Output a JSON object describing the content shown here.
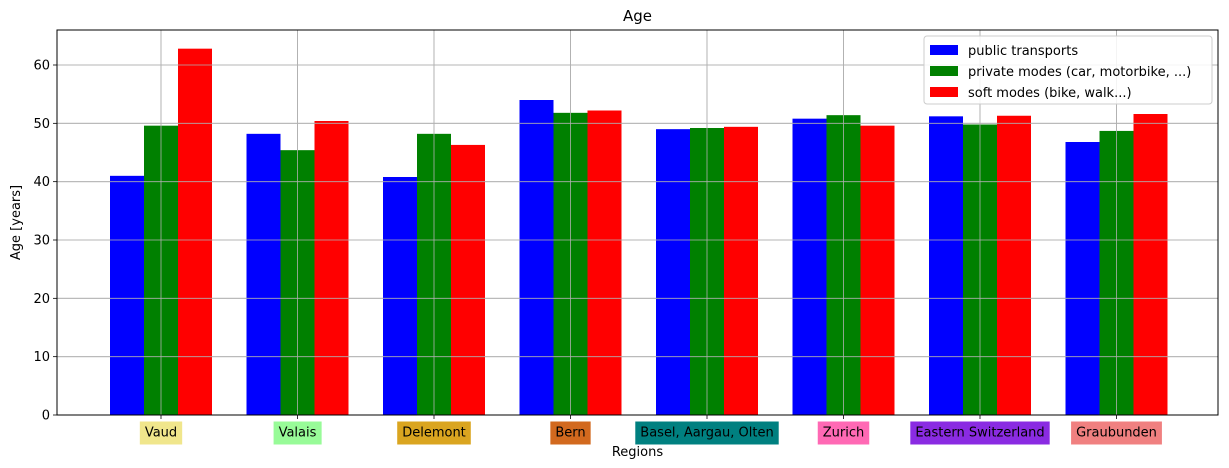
{
  "chart_data": {
    "type": "bar",
    "title": "Age",
    "xlabel": "Regions",
    "ylabel": "Age [years]",
    "ylim": [
      0,
      66
    ],
    "yticks": [
      0,
      10,
      20,
      30,
      40,
      50,
      60
    ],
    "grid": true,
    "legend_position": "top-right",
    "categories": [
      "Vaud",
      "Valais",
      "Delemont",
      "Bern",
      "Basel, Aargau, Olten",
      "Zurich",
      "Eastern Switzerland",
      "Graubunden"
    ],
    "category_colors": [
      "#f0e68c",
      "#98fb98",
      "#daa520",
      "#d2691e",
      "#008080",
      "#ff69b4",
      "#8a2be2",
      "#f08080"
    ],
    "series": [
      {
        "name": "public transports",
        "color": "#0000ff",
        "values": [
          41.0,
          48.2,
          40.8,
          54.0,
          49.0,
          50.8,
          51.2,
          46.8
        ]
      },
      {
        "name": "private modes (car, motorbike, ...)",
        "color": "#008000",
        "values": [
          49.6,
          45.4,
          48.2,
          51.8,
          49.2,
          51.4,
          49.8,
          48.7
        ]
      },
      {
        "name": "soft modes (bike, walk...)",
        "color": "#ff0000",
        "values": [
          62.8,
          50.4,
          46.3,
          52.2,
          49.4,
          49.6,
          51.3,
          51.6
        ]
      }
    ]
  }
}
